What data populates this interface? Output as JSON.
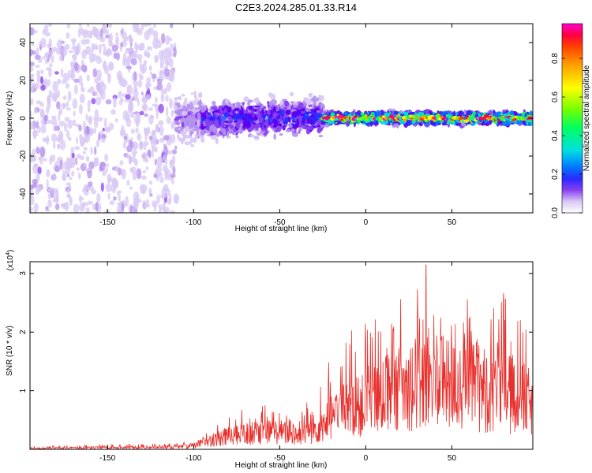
{
  "figure_title": "C2E3.2024.285.01.33.R14",
  "colors": {
    "signal_line": "#e8302c",
    "palette": [
      "#ffffff",
      "#d8c8f4",
      "#b592ee",
      "#8a40f0",
      "#5a00f0",
      "#2a2aff",
      "#0080ff",
      "#00e0e0",
      "#00ff60",
      "#7aff00",
      "#ffff00",
      "#ffa000",
      "#ff4000",
      "#ff0040",
      "#ff00d0"
    ]
  },
  "chart_data": [
    {
      "type": "heatmap",
      "title": "C2E3.2024.285.01.33.R14",
      "xlabel": "Height of straight line (km)",
      "ylabel": "Frequency (Hz)",
      "xlim": [
        -195,
        97
      ],
      "ylim": [
        -50,
        50
      ],
      "x_ticks": [
        "-150",
        "-100",
        "-50",
        "0",
        "50"
      ],
      "x_tick_values": [
        -150,
        -100,
        -50,
        0,
        50
      ],
      "y_ticks": [
        "40",
        "20",
        "0",
        "-20",
        "-40"
      ],
      "y_tick_values": [
        40,
        20,
        0,
        -20,
        -40
      ],
      "colorbar": {
        "label": "Normalized spectral amplitude",
        "range": [
          0,
          0.98
        ],
        "ticks": [
          "0.0",
          "0.2",
          "0.4",
          "0.6",
          "0.8"
        ],
        "tick_values": [
          0.0,
          0.2,
          0.4,
          0.6,
          0.8
        ]
      },
      "regions": [
        {
          "x_range": [
            -195,
            -110
          ],
          "freq_spread": 50,
          "amplitude": 0.12
        },
        {
          "x_range": [
            -110,
            -95
          ],
          "freq_spread": 15,
          "amplitude": 0.2
        },
        {
          "x_range": [
            -95,
            -25
          ],
          "freq_spread": 12,
          "amplitude": 0.35
        },
        {
          "x_range": [
            -25,
            97
          ],
          "freq_spread": 4,
          "amplitude": 0.75
        }
      ]
    },
    {
      "type": "line",
      "xlabel": "Height of straight line (km)",
      "ylabel": "SNR (10 * v/v)",
      "scale_label": "(x10",
      "scale_exponent": "4",
      "scale_close": ")",
      "xlim": [
        -195,
        97
      ],
      "ylim": [
        0,
        3.2
      ],
      "x_ticks": [
        "-150",
        "-100",
        "-50",
        "0",
        "50"
      ],
      "x_tick_values": [
        -150,
        -100,
        -50,
        0,
        50
      ],
      "y_ticks": [
        "3",
        "2",
        "1"
      ],
      "y_tick_values": [
        3,
        2,
        1
      ],
      "series": [
        {
          "x": [
            -195,
            -150,
            -110,
            -100,
            -90,
            -80,
            -70,
            -60,
            -50,
            -40,
            -30,
            -20,
            -10,
            0,
            10,
            20,
            30,
            35,
            40,
            50,
            60,
            70,
            80,
            90,
            97
          ],
          "y": [
            0.02,
            0.04,
            0.05,
            0.08,
            0.2,
            0.3,
            0.35,
            0.38,
            0.4,
            0.3,
            0.45,
            0.7,
            0.9,
            1.0,
            1.2,
            1.35,
            1.5,
            1.6,
            1.5,
            1.4,
            1.45,
            1.35,
            1.3,
            1.2,
            1.0
          ],
          "peak": [
            0.05,
            0.09,
            0.1,
            0.15,
            0.35,
            0.6,
            0.7,
            0.75,
            0.8,
            0.6,
            1.0,
            1.6,
            2.0,
            2.2,
            2.5,
            2.6,
            2.8,
            3.15,
            2.8,
            2.5,
            2.6,
            2.5,
            2.8,
            2.2,
            2.0
          ]
        }
      ]
    }
  ]
}
